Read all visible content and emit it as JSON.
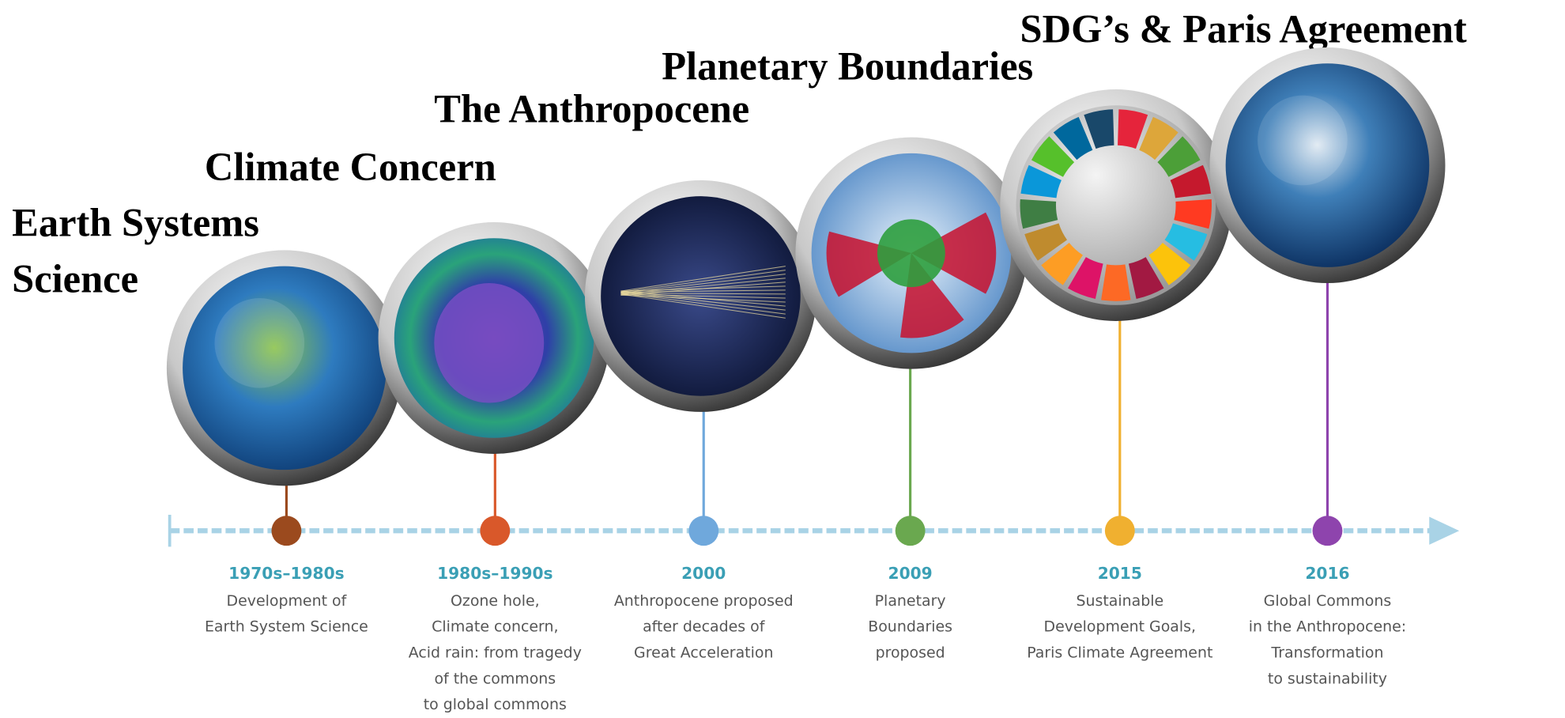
{
  "stages": [
    {
      "heading": [
        "Earth Systems",
        "Science"
      ],
      "date": "1970s–1980s",
      "description": [
        "Development of",
        "Earth System Science"
      ]
    },
    {
      "heading": [
        "Climate Concern"
      ],
      "date": "1980s–1990s",
      "description": [
        "Ozone hole,",
        "Climate concern,",
        "Acid rain: from tragedy",
        "of the commons",
        "to global commons"
      ]
    },
    {
      "heading": [
        "The Anthropocene"
      ],
      "date": "2000",
      "description": [
        "Anthropocene proposed",
        "after decades of",
        "Great Acceleration"
      ]
    },
    {
      "heading": [
        "Planetary Boundaries"
      ],
      "date": "2009",
      "description": [
        "Planetary",
        "Boundaries",
        "proposed"
      ]
    },
    {
      "heading": [
        "SDG’s & Paris Agreement"
      ],
      "date": "2015",
      "description": [
        "Sustainable",
        "Development Goals,",
        "Paris Climate Agreement"
      ]
    },
    {
      "heading": [],
      "date": "2016",
      "description": [
        "Global Commons",
        "in the Anthropocene:",
        "Transformation",
        "to sustainability"
      ]
    }
  ]
}
